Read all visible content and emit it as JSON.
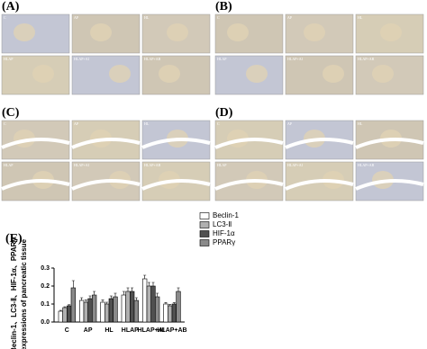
{
  "panels": [
    {
      "label": "(A)"
    },
    {
      "label": "(B)"
    },
    {
      "label": "(C)"
    },
    {
      "label": "(D)"
    }
  ],
  "tile_labels": [
    "C",
    "AP",
    "HL",
    "HLAP",
    "HLAP+AI",
    "HLAP+AB"
  ],
  "chart_label": "(E)",
  "chart_data": {
    "type": "bar",
    "ylabel": [
      "Beclin-1、LC3-Ⅱ、HIF-1α、PPARγ",
      "expressions of pancreatic tissue"
    ],
    "categories": [
      "C",
      "AP",
      "HL",
      "HLAP",
      "HLAP+AI",
      "HLAP+AB"
    ],
    "series": [
      {
        "name": "Beclin-1",
        "color": "#ffffff",
        "values": [
          0.06,
          0.12,
          0.11,
          0.15,
          0.24,
          0.1
        ],
        "errors": [
          0.005,
          0.015,
          0.012,
          0.02,
          0.02,
          0.008
        ]
      },
      {
        "name": "LC3-Ⅱ",
        "color": "#b0b0b0",
        "values": [
          0.08,
          0.11,
          0.1,
          0.17,
          0.2,
          0.09
        ],
        "errors": [
          0.005,
          0.012,
          0.01,
          0.02,
          0.02,
          0.008
        ]
      },
      {
        "name": "HIF-1α",
        "color": "#505050",
        "values": [
          0.09,
          0.13,
          0.13,
          0.17,
          0.2,
          0.1
        ],
        "errors": [
          0.006,
          0.015,
          0.015,
          0.02,
          0.02,
          0.008
        ]
      },
      {
        "name": "PPARγ",
        "color": "#8a8a8a",
        "values": [
          0.19,
          0.15,
          0.14,
          0.12,
          0.14,
          0.17
        ],
        "errors": [
          0.04,
          0.02,
          0.02,
          0.015,
          0.02,
          0.02
        ]
      }
    ],
    "ylim": [
      0,
      0.3
    ],
    "yticks": [
      {
        "value": 0,
        "label": "0.0"
      },
      0.1,
      0.2,
      0.3
    ]
  }
}
